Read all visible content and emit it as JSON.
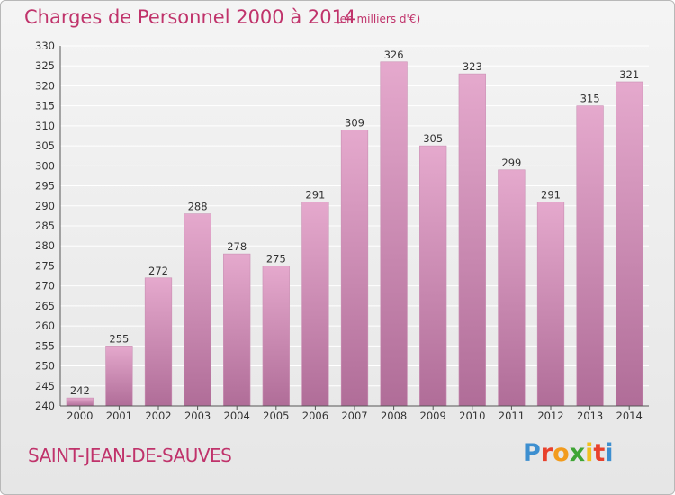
{
  "header": {
    "title": "Charges de Personnel 2000 à 2014",
    "unit_note": "(en milliers d'€)"
  },
  "footer": {
    "commune": "SAINT-JEAN-DE-SAUVES",
    "logo_letters": [
      "P",
      "r",
      "o",
      "x",
      "i",
      "t",
      "i"
    ],
    "logo_colors": [
      "#3d8fd0",
      "#e8412c",
      "#f29b1d",
      "#3fa535",
      "#f2c01d",
      "#e8412c",
      "#3d8fd0"
    ]
  },
  "colors": {
    "accent": "#c0336b",
    "bar_top": "#e5a9cd",
    "bar_bottom": "#b06d98",
    "grid": "#ffffff",
    "axis_text": "#333333"
  },
  "chart_data": {
    "type": "bar",
    "title": "Charges de Personnel 2000 à 2014",
    "subtitle": "(en milliers d'€)",
    "xlabel": "",
    "ylabel": "",
    "categories": [
      "2000",
      "2001",
      "2002",
      "2003",
      "2004",
      "2005",
      "2006",
      "2007",
      "2008",
      "2009",
      "2010",
      "2011",
      "2012",
      "2013",
      "2014"
    ],
    "values": [
      242,
      255,
      272,
      288,
      278,
      275,
      291,
      309,
      326,
      305,
      323,
      299,
      291,
      315,
      321
    ],
    "ylim": [
      240,
      330
    ],
    "yticks": [
      240,
      245,
      250,
      255,
      260,
      265,
      270,
      275,
      280,
      285,
      290,
      295,
      300,
      305,
      310,
      315,
      320,
      325,
      330
    ],
    "grid": true,
    "data_labels": true,
    "legend": "none"
  }
}
